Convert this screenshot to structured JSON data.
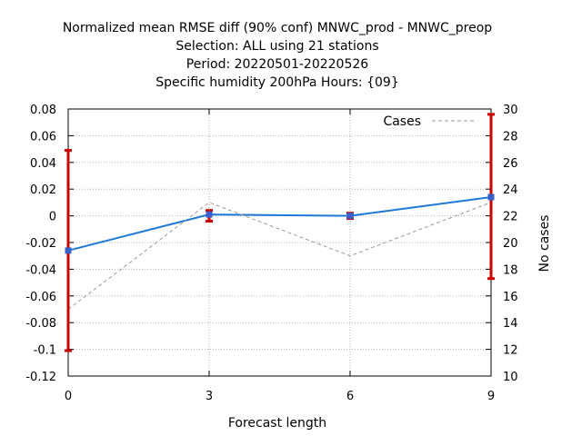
{
  "chart_data": {
    "type": "line",
    "title_lines": [
      "Normalized mean RMSE diff (90% conf) MNWC_prod - MNWC_preop",
      "Selection: ALL using    21 stations",
      "Period: 20220501-20220526",
      "Specific humidity 200hPa   Hours: {09}"
    ],
    "xlabel": "Forecast length",
    "y2label": "No cases",
    "x_ticks": [
      "0",
      "3",
      "6",
      "9"
    ],
    "y_ticks": [
      "-0.12",
      "-0.1",
      "-0.08",
      "-0.06",
      "-0.04",
      "-0.02",
      "0",
      "0.02",
      "0.04",
      "0.06",
      "0.08"
    ],
    "y2_ticks": [
      "10",
      "12",
      "14",
      "16",
      "18",
      "20",
      "22",
      "24",
      "26",
      "28",
      "30"
    ],
    "xlim": [
      0,
      9
    ],
    "ylim": [
      -0.12,
      0.08
    ],
    "y2lim": [
      10,
      30
    ],
    "grid": true,
    "legend_position": "top-right",
    "series": [
      {
        "name": "",
        "axis": "y",
        "color": "#1e78d8",
        "marker_color": "#3a5fc8",
        "style": "solid",
        "x": [
          0,
          3,
          6,
          9
        ],
        "values": [
          -0.026,
          0.001,
          0.0,
          0.014
        ]
      },
      {
        "name": "Cases",
        "axis": "y2",
        "color": "#999999",
        "style": "dashed",
        "x": [
          0,
          3,
          6,
          9
        ],
        "values": [
          15,
          23,
          19,
          23
        ]
      }
    ],
    "error_bars": {
      "color": "#cc0000",
      "x": [
        0,
        3,
        6,
        9
      ],
      "low": [
        -0.101,
        -0.004,
        -0.002,
        -0.047
      ],
      "high": [
        0.049,
        0.004,
        0.002,
        0.076
      ]
    }
  }
}
